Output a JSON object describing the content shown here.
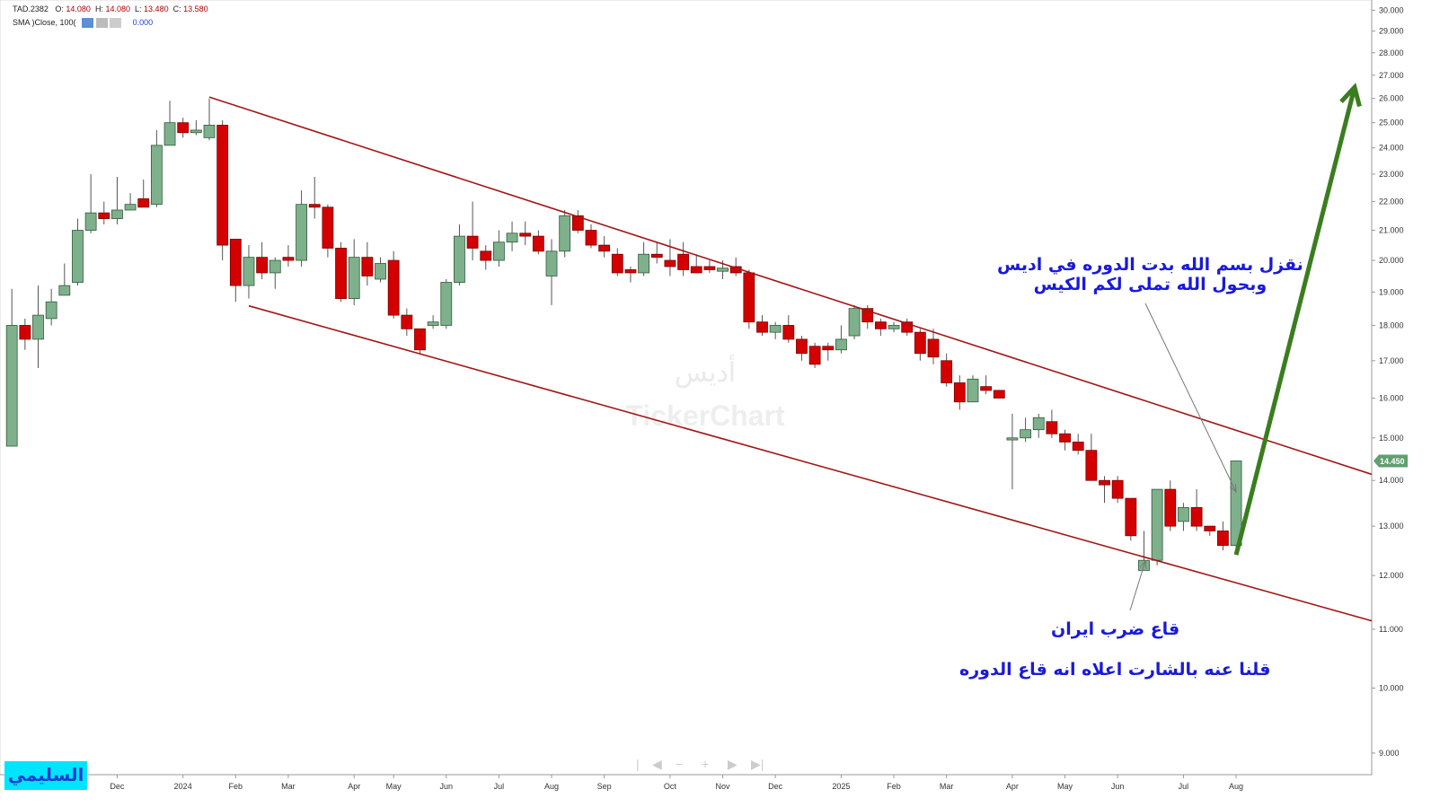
{
  "header": {
    "symbol": "TAD.2382",
    "o_label": "O:",
    "o_value": "14.080",
    "h_label": "H:",
    "h_value": "14.080",
    "l_label": "L:",
    "l_value": "13.480",
    "c_label": "C:",
    "c_value": "13.580",
    "indicator": "SMA )Close, 100(",
    "indicator_value": "0.000"
  },
  "watermark": {
    "arabic": "أديس",
    "brand": "TickerChart"
  },
  "author": "السليمي",
  "chart_data": {
    "type": "candlestick",
    "log_scale": true,
    "up_color": "#7fb08c",
    "down_color": "#d40000",
    "xlim": [
      -0.9,
      103.3
    ],
    "xticks": [
      {
        "value": 8,
        "label": "Dec"
      },
      {
        "value": 13,
        "label": "2024"
      },
      {
        "value": 17,
        "label": "Feb"
      },
      {
        "value": 21,
        "label": "Mar"
      },
      {
        "value": 26,
        "label": "Apr"
      },
      {
        "value": 29,
        "label": "May"
      },
      {
        "value": 33,
        "label": "Jun"
      },
      {
        "value": 37,
        "label": "Jul"
      },
      {
        "value": 41,
        "label": "Aug"
      },
      {
        "value": 45,
        "label": "Sep"
      },
      {
        "value": 50,
        "label": "Oct"
      },
      {
        "value": 54,
        "label": "Nov"
      },
      {
        "value": 58,
        "label": "Dec"
      },
      {
        "value": 63,
        "label": "2025"
      },
      {
        "value": 67,
        "label": "Feb"
      },
      {
        "value": 71,
        "label": "Mar"
      },
      {
        "value": 76,
        "label": "Apr"
      },
      {
        "value": 80,
        "label": "May"
      },
      {
        "value": 84,
        "label": "Jun"
      },
      {
        "value": 89,
        "label": "Jul"
      },
      {
        "value": 93,
        "label": "Aug"
      }
    ],
    "ylim": [
      8.69,
      30.5
    ],
    "yticks": [
      {
        "value": 9,
        "label": "9.000"
      },
      {
        "value": 10,
        "label": "10.000"
      },
      {
        "value": 11,
        "label": "11.000"
      },
      {
        "value": 12,
        "label": "12.000"
      },
      {
        "value": 13,
        "label": "13.000"
      },
      {
        "value": 14,
        "label": "14.000"
      },
      {
        "value": 15,
        "label": "15.000"
      },
      {
        "value": 16,
        "label": "16.000"
      },
      {
        "value": 17,
        "label": "17.000"
      },
      {
        "value": 18,
        "label": "18.000"
      },
      {
        "value": 19,
        "label": "19.000"
      },
      {
        "value": 20,
        "label": "20.000"
      },
      {
        "value": 21,
        "label": "21.000"
      },
      {
        "value": 22,
        "label": "22.000"
      },
      {
        "value": 23,
        "label": "23.000"
      },
      {
        "value": 24,
        "label": "24.000"
      },
      {
        "value": 25,
        "label": "25.000"
      },
      {
        "value": 26,
        "label": "26.000"
      },
      {
        "value": 27,
        "label": "27.000"
      },
      {
        "value": 28,
        "label": "28.000"
      },
      {
        "value": 29,
        "label": "29.000"
      },
      {
        "value": 30,
        "label": "30.000"
      }
    ],
    "open": [
      14.8,
      18.0,
      17.6,
      18.2,
      18.9,
      19.3,
      21.0,
      21.6,
      21.4,
      21.7,
      22.1,
      21.9,
      24.1,
      25.0,
      24.6,
      24.4,
      24.9,
      20.7,
      19.2,
      20.1,
      19.6,
      20.1,
      20.0,
      21.9,
      21.8,
      20.4,
      18.8,
      20.1,
      19.4,
      20.0,
      18.3,
      17.9,
      18.0,
      18.0,
      19.3,
      20.8,
      20.3,
      20.0,
      20.6,
      20.9,
      20.8,
      19.5,
      20.3,
      21.5,
      21.0,
      20.5,
      20.2,
      19.7,
      19.6,
      20.2,
      20.0,
      20.2,
      19.8,
      19.8,
      19.65,
      19.8,
      19.6,
      18.1,
      17.8,
      18.0,
      17.6,
      17.4,
      17.4,
      17.3,
      17.7,
      18.5,
      18.1,
      17.9,
      18.1,
      17.8,
      17.6,
      17.0,
      16.4,
      15.9,
      16.3,
      16.2,
      14.95,
      15.0,
      15.2,
      15.4,
      15.1,
      14.9,
      14.7,
      14.0,
      14.0,
      13.6,
      12.1,
      12.3,
      13.8,
      13.1,
      13.4,
      13.0,
      12.9,
      12.6
    ],
    "high": [
      19.1,
      18.2,
      19.2,
      19.1,
      19.9,
      21.4,
      23.0,
      22.0,
      22.9,
      22.3,
      22.8,
      24.7,
      25.9,
      25.2,
      25.1,
      26.0,
      25.1,
      20.7,
      20.5,
      20.6,
      20.1,
      20.5,
      22.4,
      22.9,
      21.9,
      20.6,
      20.7,
      20.6,
      20.1,
      20.3,
      18.5,
      17.9,
      18.3,
      19.4,
      21.2,
      22.0,
      20.5,
      21.0,
      21.3,
      21.3,
      21.0,
      20.7,
      21.7,
      21.7,
      21.2,
      20.8,
      20.4,
      19.8,
      20.6,
      20.6,
      20.7,
      20.6,
      20.2,
      20.0,
      20.0,
      20.1,
      19.7,
      18.3,
      18.1,
      18.3,
      17.7,
      17.5,
      17.5,
      18.0,
      18.6,
      18.6,
      18.2,
      18.1,
      18.2,
      17.9,
      17.9,
      17.2,
      16.6,
      16.6,
      16.6,
      16.2,
      15.6,
      15.5,
      15.6,
      15.7,
      15.2,
      15.1,
      15.1,
      14.1,
      14.1,
      13.6,
      12.9,
      13.8,
      14.0,
      13.5,
      13.8,
      13.0,
      13.1,
      14.45
    ],
    "low": [
      14.8,
      17.3,
      16.8,
      18.0,
      18.9,
      19.2,
      20.9,
      21.2,
      21.2,
      21.7,
      21.8,
      21.8,
      24.1,
      24.4,
      24.5,
      24.3,
      20.0,
      18.7,
      18.8,
      19.4,
      19.1,
      19.8,
      19.8,
      21.4,
      20.1,
      18.7,
      18.6,
      19.2,
      19.3,
      18.2,
      17.7,
      17.2,
      17.9,
      17.9,
      19.2,
      20.0,
      19.7,
      19.8,
      20.3,
      20.5,
      20.2,
      18.6,
      20.1,
      20.9,
      20.4,
      20.1,
      19.5,
      19.3,
      19.5,
      19.9,
      19.5,
      19.5,
      19.6,
      19.6,
      19.4,
      19.5,
      17.9,
      17.7,
      17.6,
      17.5,
      17.0,
      16.8,
      17.0,
      17.2,
      17.6,
      17.9,
      17.7,
      17.8,
      17.7,
      17.0,
      16.9,
      16.3,
      15.7,
      15.9,
      16.1,
      16.0,
      13.8,
      14.9,
      15.0,
      15.0,
      14.7,
      14.6,
      14.0,
      13.5,
      13.5,
      12.7,
      12.1,
      12.2,
      12.9,
      12.9,
      12.9,
      12.8,
      12.5,
      12.5
    ],
    "close": [
      18.0,
      17.6,
      18.3,
      18.7,
      19.2,
      21.0,
      21.6,
      21.4,
      21.7,
      21.9,
      21.8,
      24.1,
      25.0,
      24.6,
      24.7,
      24.9,
      20.5,
      19.2,
      20.1,
      19.6,
      20.0,
      20.0,
      21.9,
      21.8,
      20.4,
      18.8,
      20.1,
      19.5,
      19.9,
      18.3,
      17.9,
      17.3,
      18.1,
      19.3,
      20.8,
      20.4,
      20.0,
      20.6,
      20.9,
      20.8,
      20.3,
      20.3,
      21.5,
      21.0,
      20.5,
      20.3,
      19.6,
      19.6,
      20.2,
      20.1,
      19.8,
      19.7,
      19.6,
      19.7,
      19.75,
      19.6,
      18.1,
      17.8,
      18.0,
      17.6,
      17.2,
      16.9,
      17.3,
      17.6,
      18.5,
      18.1,
      17.9,
      18.0,
      17.8,
      17.2,
      17.1,
      16.4,
      15.9,
      16.5,
      16.2,
      16.0,
      15.0,
      15.2,
      15.5,
      15.1,
      14.9,
      14.7,
      14.0,
      13.9,
      13.6,
      12.8,
      12.3,
      13.8,
      13.0,
      13.4,
      13.0,
      12.9,
      12.6,
      14.45
    ],
    "last_price": {
      "value": 14.45,
      "label": "14.450",
      "color": "#5f9f70"
    },
    "trendlines": [
      {
        "color": "#a31515",
        "x": [
          15.0,
          103.3
        ],
        "y": [
          26.06,
          14.14
        ]
      },
      {
        "color": "#a31515",
        "x": [
          18.0,
          103.3
        ],
        "y": [
          18.58,
          11.15
        ]
      },
      {
        "color": "#3a7d1e",
        "arrow": true,
        "x": [
          93,
          102
        ],
        "y": [
          12.41,
          26.48
        ]
      }
    ],
    "annotations": [
      {
        "lines": [
          "نقزل بسم الله بدت الدوره في اديس",
          "وبحول الله تملى لكم الكيس"
        ]
      },
      {
        "lines": [
          "قاع ضرب ايران"
        ]
      },
      {
        "lines": [
          "قلنا عنه بالشارت اعلاه انه قاع الدوره"
        ]
      }
    ]
  }
}
